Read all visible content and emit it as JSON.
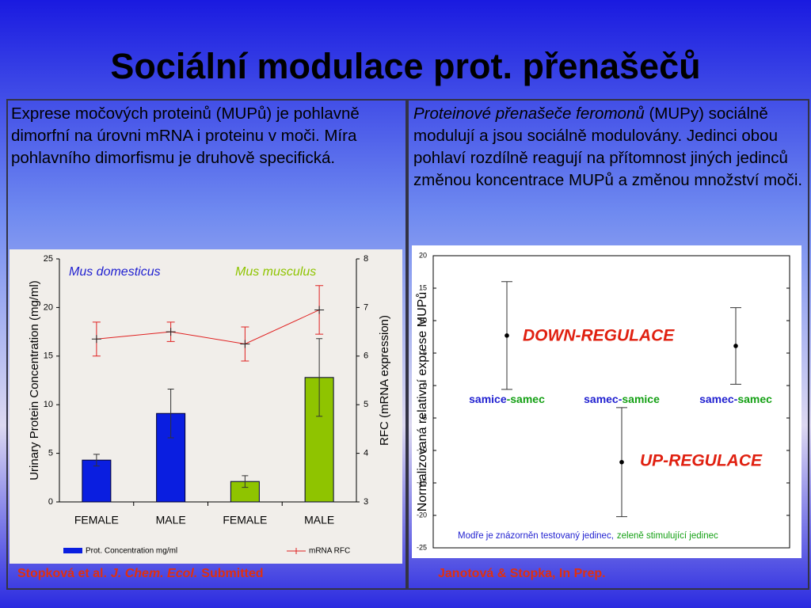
{
  "title": "Sociální modulace prot. přenašečů",
  "left": {
    "text": "Exprese močových proteinů (MUPů) je pohlavně dimorfní na úrovni mRNA i proteinu v moči. Míra pohlavního dimorfismu je druhově specifická.",
    "citation": [
      "Stopková et al.",
      "J. Chem. Ecol.",
      "Submitted"
    ]
  },
  "right": {
    "text_italic": "Proteinové přenašeče feromonů",
    "text": "(MUPy) sociálně modulují a jsou sociálně modulovány. Jedinci obou pohlaví rozdílně reagují na přítomnost jiných jedinců změnou koncentrace MUPů a změnou množství moči.",
    "citation": "Janotová & Stopka, In Prep."
  },
  "chart_data": [
    {
      "type": "bar",
      "categories": [
        "FEMALE",
        "MALE",
        "FEMALE",
        "MALE"
      ],
      "groups": [
        {
          "name": "Mus domesticus",
          "color": "#1f1fd0"
        },
        {
          "name": "Mus musculus",
          "color": "#8fc400"
        }
      ],
      "ylabel": "Urinary Protein Concentration (mg/ml)",
      "y2label": "RFC (mRNA expression)",
      "ylim": [
        0,
        25
      ],
      "yticks": [
        0,
        5,
        10,
        15,
        20,
        25
      ],
      "y2lim": [
        3,
        8
      ],
      "y2ticks": [
        3,
        4,
        5,
        6,
        7,
        8
      ],
      "series": [
        {
          "name": "Prot. Concentration mg/ml",
          "color": "#0a1ee0",
          "colors": [
            "#0a1ee0",
            "#0a1ee0",
            "#8fc400",
            "#8fc400"
          ],
          "values": [
            4.3,
            9.1,
            2.1,
            12.8
          ],
          "errors": [
            0.6,
            2.5,
            0.6,
            4.0
          ]
        },
        {
          "name": "mRNA RFC",
          "type": "line",
          "axis": "y2",
          "color": "#e02020",
          "values": [
            6.35,
            6.5,
            6.25,
            6.95
          ],
          "errors": [
            0.35,
            0.2,
            0.35,
            0.5
          ]
        }
      ]
    },
    {
      "type": "errorbar",
      "ylabel": "Normalizovaná relativní exprese MUPů",
      "categories": [
        [
          {
            "text": "samice",
            "color": "#1f1fd0"
          },
          {
            "text": "-samec",
            "color": "#14a014"
          }
        ],
        [
          {
            "text": "samec-",
            "color": "#1f1fd0"
          },
          {
            "text": "samice",
            "color": "#14a014"
          }
        ],
        [
          {
            "text": "samec-",
            "color": "#1f1fd0"
          },
          {
            "text": "samec",
            "color": "#14a014"
          }
        ]
      ],
      "values": [
        7.7,
        -11.8,
        6.1
      ],
      "errors": [
        8.3,
        8.4,
        5.9
      ],
      "ylim": [
        -25,
        20
      ],
      "yticks": [
        -25,
        -20,
        -15,
        -10,
        -5,
        0,
        5,
        10,
        15,
        20
      ],
      "annotations": [
        "DOWN-REGULACE",
        "UP-REGULACE"
      ],
      "note": [
        {
          "text": "Modře je znázorněn testovaný jedinec,",
          "color": "#1f1fd0"
        },
        {
          "text": "zeleně stimulující jedinec",
          "color": "#14a014"
        }
      ]
    }
  ]
}
